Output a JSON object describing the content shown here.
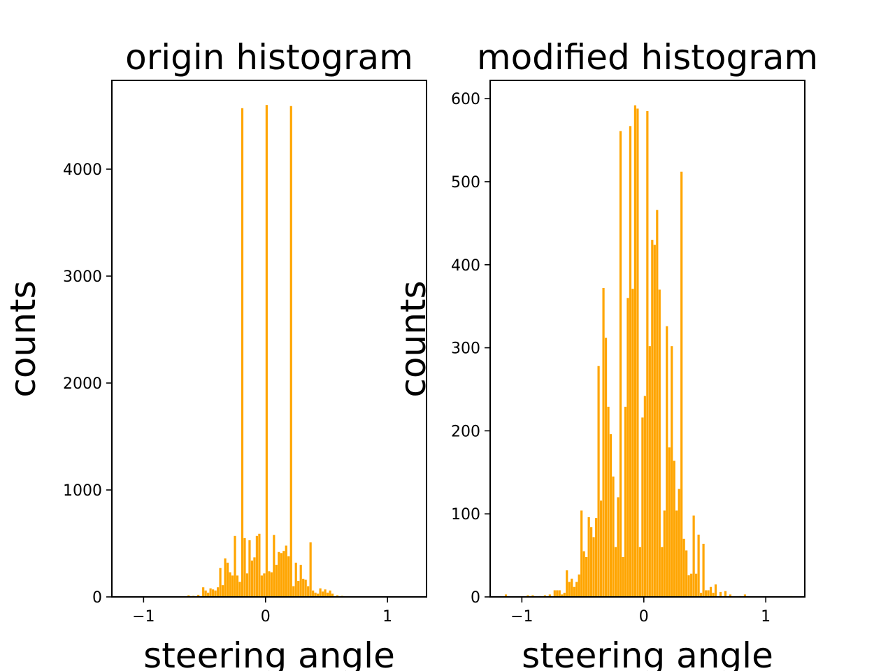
{
  "chart_data": [
    {
      "type": "bar",
      "title": "origin histogram",
      "xlabel": "steering angle",
      "ylabel": "counts",
      "xlim": [
        -1.26,
        1.32
      ],
      "ylim": [
        0,
        4830
      ],
      "xticks": [
        -1,
        0,
        1
      ],
      "xtick_labels": [
        "−1",
        "0",
        "1"
      ],
      "yticks": [
        0,
        1000,
        2000,
        3000,
        4000
      ],
      "ytick_labels": [
        "0",
        "1000",
        "2000",
        "3000",
        "4000"
      ],
      "grid": false,
      "bar_color": "#ffa500",
      "bin_width": 0.02,
      "bins": [
        [
          -0.64,
          15
        ],
        [
          -0.6,
          10
        ],
        [
          -0.56,
          20
        ],
        [
          -0.52,
          90
        ],
        [
          -0.5,
          60
        ],
        [
          -0.48,
          40
        ],
        [
          -0.46,
          80
        ],
        [
          -0.44,
          70
        ],
        [
          -0.42,
          60
        ],
        [
          -0.4,
          90
        ],
        [
          -0.38,
          270
        ],
        [
          -0.36,
          110
        ],
        [
          -0.34,
          360
        ],
        [
          -0.32,
          320
        ],
        [
          -0.3,
          230
        ],
        [
          -0.28,
          200
        ],
        [
          -0.26,
          570
        ],
        [
          -0.24,
          200
        ],
        [
          -0.22,
          140
        ],
        [
          -0.2,
          4570
        ],
        [
          -0.18,
          550
        ],
        [
          -0.16,
          220
        ],
        [
          -0.14,
          530
        ],
        [
          -0.12,
          340
        ],
        [
          -0.1,
          370
        ],
        [
          -0.08,
          570
        ],
        [
          -0.06,
          590
        ],
        [
          -0.04,
          200
        ],
        [
          -0.02,
          220
        ],
        [
          0.0,
          4600
        ],
        [
          0.02,
          240
        ],
        [
          0.04,
          230
        ],
        [
          0.06,
          580
        ],
        [
          0.08,
          300
        ],
        [
          0.1,
          420
        ],
        [
          0.12,
          410
        ],
        [
          0.14,
          430
        ],
        [
          0.16,
          480
        ],
        [
          0.18,
          380
        ],
        [
          0.2,
          4590
        ],
        [
          0.22,
          100
        ],
        [
          0.24,
          320
        ],
        [
          0.26,
          150
        ],
        [
          0.28,
          300
        ],
        [
          0.3,
          170
        ],
        [
          0.32,
          160
        ],
        [
          0.34,
          100
        ],
        [
          0.36,
          510
        ],
        [
          0.38,
          60
        ],
        [
          0.4,
          40
        ],
        [
          0.42,
          30
        ],
        [
          0.44,
          80
        ],
        [
          0.46,
          50
        ],
        [
          0.48,
          70
        ],
        [
          0.5,
          40
        ],
        [
          0.52,
          60
        ],
        [
          0.54,
          30
        ],
        [
          0.58,
          15
        ],
        [
          0.62,
          10
        ],
        [
          0.68,
          5
        ]
      ]
    },
    {
      "type": "bar",
      "title": "modified histogram",
      "xlabel": "steering angle",
      "ylabel": "counts",
      "xlim": [
        -1.26,
        1.32
      ],
      "ylim": [
        0,
        622
      ],
      "xticks": [
        -1,
        0,
        1
      ],
      "xtick_labels": [
        "−1",
        "0",
        "1"
      ],
      "yticks": [
        0,
        100,
        200,
        300,
        400,
        500,
        600
      ],
      "ytick_labels": [
        "0",
        "100",
        "200",
        "300",
        "400",
        "500",
        "600"
      ],
      "grid": false,
      "bar_color": "#ffa500",
      "bin_width": 0.02,
      "bins": [
        [
          -1.14,
          3
        ],
        [
          -0.96,
          2
        ],
        [
          -0.92,
          2
        ],
        [
          -0.86,
          1
        ],
        [
          -0.82,
          2
        ],
        [
          -0.78,
          3
        ],
        [
          -0.74,
          8
        ],
        [
          -0.72,
          8
        ],
        [
          -0.7,
          8
        ],
        [
          -0.68,
          3
        ],
        [
          -0.66,
          5
        ],
        [
          -0.64,
          32
        ],
        [
          -0.62,
          18
        ],
        [
          -0.6,
          22
        ],
        [
          -0.58,
          12
        ],
        [
          -0.56,
          18
        ],
        [
          -0.54,
          27
        ],
        [
          -0.52,
          104
        ],
        [
          -0.5,
          55
        ],
        [
          -0.48,
          48
        ],
        [
          -0.46,
          96
        ],
        [
          -0.44,
          84
        ],
        [
          -0.42,
          72
        ],
        [
          -0.4,
          95
        ],
        [
          -0.38,
          278
        ],
        [
          -0.36,
          116
        ],
        [
          -0.34,
          372
        ],
        [
          -0.32,
          312
        ],
        [
          -0.3,
          229
        ],
        [
          -0.28,
          196
        ],
        [
          -0.26,
          145
        ],
        [
          -0.24,
          60
        ],
        [
          -0.22,
          120
        ],
        [
          -0.2,
          561
        ],
        [
          -0.18,
          48
        ],
        [
          -0.16,
          229
        ],
        [
          -0.14,
          360
        ],
        [
          -0.12,
          567
        ],
        [
          -0.1,
          371
        ],
        [
          -0.08,
          592
        ],
        [
          -0.06,
          588
        ],
        [
          -0.04,
          60
        ],
        [
          -0.02,
          216
        ],
        [
          0.0,
          242
        ],
        [
          0.02,
          585
        ],
        [
          0.04,
          302
        ],
        [
          0.06,
          430
        ],
        [
          0.08,
          424
        ],
        [
          0.1,
          466
        ],
        [
          0.12,
          370
        ],
        [
          0.14,
          60
        ],
        [
          0.16,
          104
        ],
        [
          0.18,
          326
        ],
        [
          0.2,
          180
        ],
        [
          0.22,
          302
        ],
        [
          0.24,
          164
        ],
        [
          0.26,
          104
        ],
        [
          0.28,
          130
        ],
        [
          0.3,
          512
        ],
        [
          0.32,
          70
        ],
        [
          0.34,
          56
        ],
        [
          0.36,
          26
        ],
        [
          0.38,
          28
        ],
        [
          0.4,
          98
        ],
        [
          0.42,
          28
        ],
        [
          0.44,
          75
        ],
        [
          0.46,
          5
        ],
        [
          0.48,
          64
        ],
        [
          0.5,
          8
        ],
        [
          0.52,
          8
        ],
        [
          0.54,
          12
        ],
        [
          0.56,
          5
        ],
        [
          0.58,
          15
        ],
        [
          0.62,
          6
        ],
        [
          0.66,
          7
        ],
        [
          0.7,
          3
        ],
        [
          0.78,
          1
        ],
        [
          0.82,
          3
        ],
        [
          1.2,
          1
        ]
      ]
    }
  ]
}
